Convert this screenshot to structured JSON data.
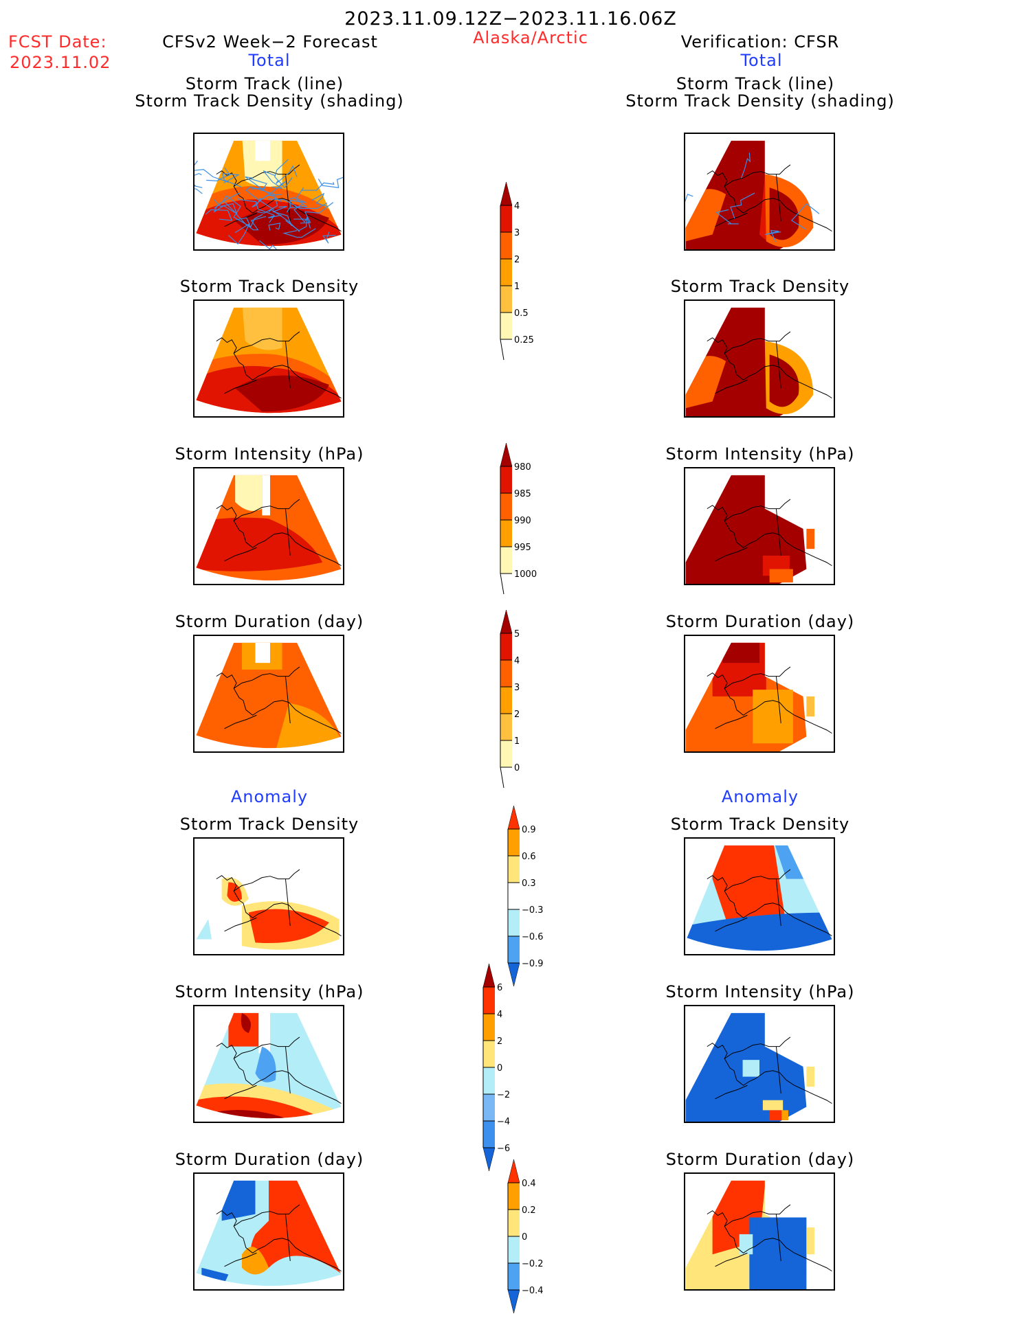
{
  "header": {
    "date_range": "2023.11.09.12Z−2023.11.16.06Z",
    "fcst_date_label": "FCST Date:",
    "fcst_date_value": "2023.11.02",
    "region": "Alaska/Arctic",
    "left_title": "CFSv2 Week−2 Forecast",
    "right_title": "Verification: CFSR",
    "left_section": "Total",
    "right_section": "Total",
    "anomaly_left": "Anomaly",
    "anomaly_right": "Anomaly"
  },
  "panel_titles": {
    "track_line": "Storm Track (line)",
    "track_shading": "Storm Track Density (shading)",
    "density": "Storm Track Density",
    "intensity": "Storm Intensity (hPa)",
    "duration": "Storm Duration (day)"
  },
  "colors": {
    "warm": [
      "#fff7b3",
      "#ffc040",
      "#ffa000",
      "#ff6000",
      "#e01400",
      "#a50000"
    ],
    "anom": [
      "#1565d8",
      "#4ea2f2",
      "#b3eef8",
      "#ffffff",
      "#ffe57a",
      "#ffa000",
      "#ff3300",
      "#a50000"
    ]
  },
  "chart_data": [
    {
      "type": "heatmap",
      "id": "fcst-total-track",
      "title": "Storm Track (line) / Storm Track Density (shading)",
      "source": "CFSv2 Week-2 Forecast",
      "section": "Total",
      "colorbar": "density"
    },
    {
      "type": "heatmap",
      "id": "cfsr-total-track",
      "title": "Storm Track (line) / Storm Track Density (shading)",
      "source": "Verification: CFSR",
      "section": "Total",
      "colorbar": "density"
    },
    {
      "type": "heatmap",
      "id": "fcst-total-density",
      "title": "Storm Track Density",
      "source": "CFSv2 Week-2 Forecast",
      "section": "Total",
      "colorbar": "density"
    },
    {
      "type": "heatmap",
      "id": "cfsr-total-density",
      "title": "Storm Track Density",
      "source": "Verification: CFSR",
      "section": "Total",
      "colorbar": "density"
    },
    {
      "type": "heatmap",
      "id": "fcst-total-intensity",
      "title": "Storm Intensity (hPa)",
      "source": "CFSv2 Week-2 Forecast",
      "section": "Total",
      "colorbar": "intensity"
    },
    {
      "type": "heatmap",
      "id": "cfsr-total-intensity",
      "title": "Storm Intensity (hPa)",
      "source": "Verification: CFSR",
      "section": "Total",
      "colorbar": "intensity"
    },
    {
      "type": "heatmap",
      "id": "fcst-total-duration",
      "title": "Storm Duration (day)",
      "source": "CFSv2 Week-2 Forecast",
      "section": "Total",
      "colorbar": "duration"
    },
    {
      "type": "heatmap",
      "id": "cfsr-total-duration",
      "title": "Storm Duration (day)",
      "source": "Verification: CFSR",
      "section": "Total",
      "colorbar": "duration"
    },
    {
      "type": "heatmap",
      "id": "fcst-anom-density",
      "title": "Storm Track Density",
      "source": "CFSv2 Week-2 Forecast",
      "section": "Anomaly",
      "colorbar": "density_anom"
    },
    {
      "type": "heatmap",
      "id": "cfsr-anom-density",
      "title": "Storm Track Density",
      "source": "Verification: CFSR",
      "section": "Anomaly",
      "colorbar": "density_anom"
    },
    {
      "type": "heatmap",
      "id": "fcst-anom-intensity",
      "title": "Storm Intensity (hPa)",
      "source": "CFSv2 Week-2 Forecast",
      "section": "Anomaly",
      "colorbar": "intensity_anom"
    },
    {
      "type": "heatmap",
      "id": "cfsr-anom-intensity",
      "title": "Storm Intensity (hPa)",
      "source": "Verification: CFSR",
      "section": "Anomaly",
      "colorbar": "intensity_anom"
    },
    {
      "type": "heatmap",
      "id": "fcst-anom-duration",
      "title": "Storm Duration (day)",
      "source": "CFSv2 Week-2 Forecast",
      "section": "Anomaly",
      "colorbar": "duration_anom"
    },
    {
      "type": "heatmap",
      "id": "cfsr-anom-duration",
      "title": "Storm Duration (day)",
      "source": "Verification: CFSR",
      "section": "Anomaly",
      "colorbar": "duration_anom"
    }
  ],
  "colorbars": {
    "density": {
      "levels": [
        "0.25",
        "0.5",
        "1",
        "2",
        "3",
        "4"
      ],
      "colors": [
        "#fff7b3",
        "#ffc040",
        "#ffa000",
        "#ff6000",
        "#e01400"
      ],
      "over": "#a50000",
      "under": null
    },
    "intensity": {
      "levels": [
        "1000",
        "995",
        "990",
        "985",
        "980"
      ],
      "colors": [
        "#fff7b3",
        "#ffa000",
        "#ff6000",
        "#e01400"
      ],
      "over": "#a50000",
      "under": null,
      "reversed": true
    },
    "duration": {
      "levels": [
        "0",
        "1",
        "2",
        "3",
        "4",
        "5"
      ],
      "colors": [
        "#fff7b3",
        "#ffc040",
        "#ffa000",
        "#ff6000",
        "#e01400"
      ],
      "over": "#a50000",
      "under": null
    },
    "density_anom": {
      "levels": [
        "−0.9",
        "−0.6",
        "−0.3",
        "0.3",
        "0.6",
        "0.9"
      ],
      "colors": [
        "#4ea2f2",
        "#b3eef8",
        "#ffffff",
        "#ffe57a",
        "#ffa000"
      ],
      "over": "#ff3300",
      "under": "#1565d8"
    },
    "intensity_anom": {
      "levels": [
        "−6",
        "−4",
        "−2",
        "0",
        "2",
        "4",
        "6"
      ],
      "colors": [
        "#3e90ee",
        "#7ab8f5",
        "#b3eef8",
        "#ffe57a",
        "#ffa000",
        "#ff3300"
      ],
      "over": "#a50000",
      "under": "#1565d8"
    },
    "duration_anom": {
      "levels": [
        "−0.4",
        "−0.2",
        "0",
        "0.2",
        "0.4"
      ],
      "colors": [
        "#4ea2f2",
        "#b3eef8",
        "#ffe57a",
        "#ffa000"
      ],
      "over": "#ff3300",
      "under": "#1565d8"
    }
  }
}
